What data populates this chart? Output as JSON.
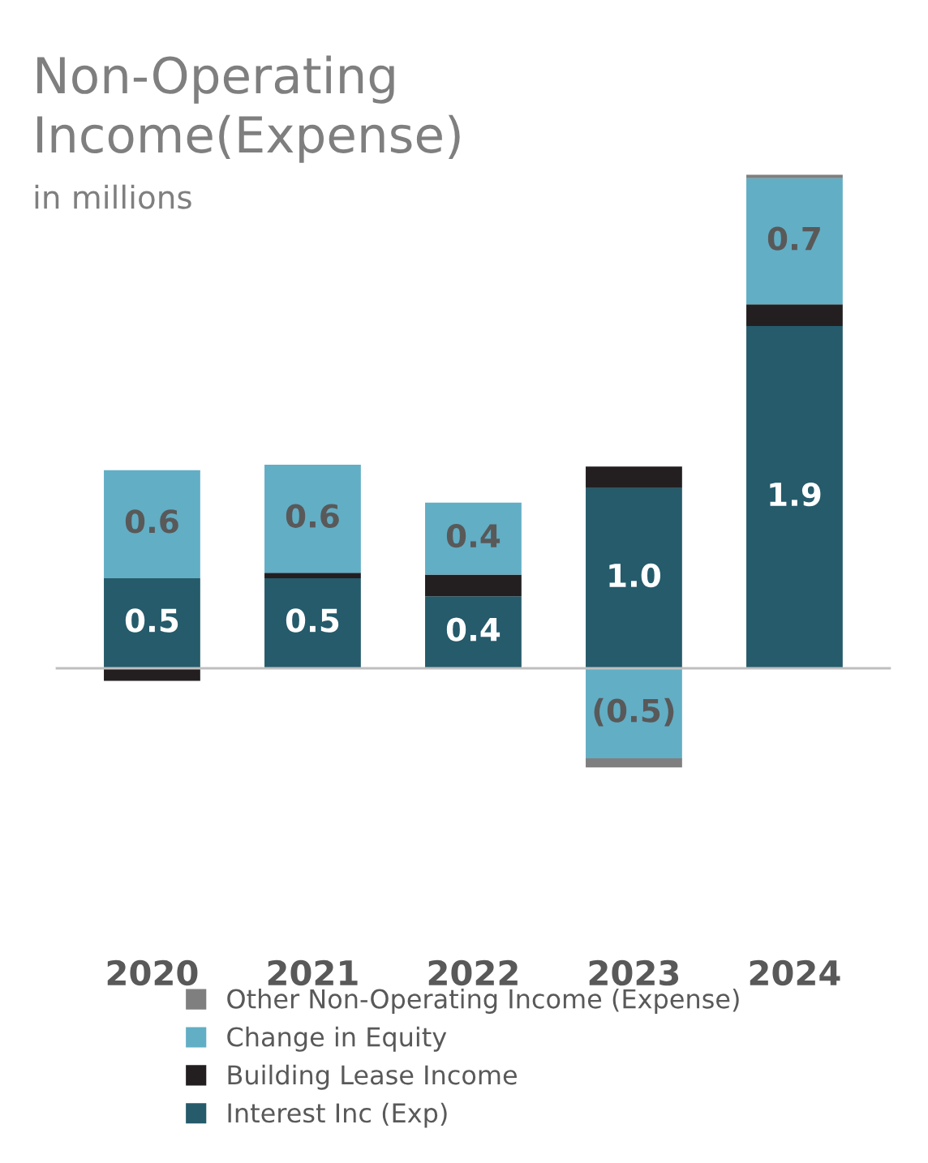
{
  "chart_data": {
    "type": "bar",
    "title": "Non-Operating\nIncome(Expense)",
    "subtitle": "in millions",
    "categories": [
      "2020",
      "2021",
      "2022",
      "2023",
      "2024"
    ],
    "stacked": true,
    "grid": false,
    "legend": "bottom",
    "series": [
      {
        "name": "Interest Inc (Exp)",
        "color": "#255b6b",
        "values": [
          0.5,
          0.5,
          0.4,
          1.0,
          1.9
        ],
        "value_labels": [
          "0.5",
          "0.5",
          "0.4",
          "1.0",
          "1.9"
        ]
      },
      {
        "name": "Building Lease Income",
        "color": "#231f20",
        "values": [
          -0.07,
          0.03,
          0.12,
          0.12,
          0.12
        ]
      },
      {
        "name": "Change in Equity",
        "color": "#62aec5",
        "values": [
          0.6,
          0.6,
          0.4,
          -0.5,
          0.7
        ],
        "value_labels": [
          "0.6",
          "0.6",
          "0.4",
          "(0.5)",
          "0.7"
        ]
      },
      {
        "name": "Other Non-Operating Income (Expense)",
        "color": "#7f7f7f",
        "values": [
          0,
          0,
          0,
          -0.05,
          0.02
        ]
      }
    ]
  }
}
